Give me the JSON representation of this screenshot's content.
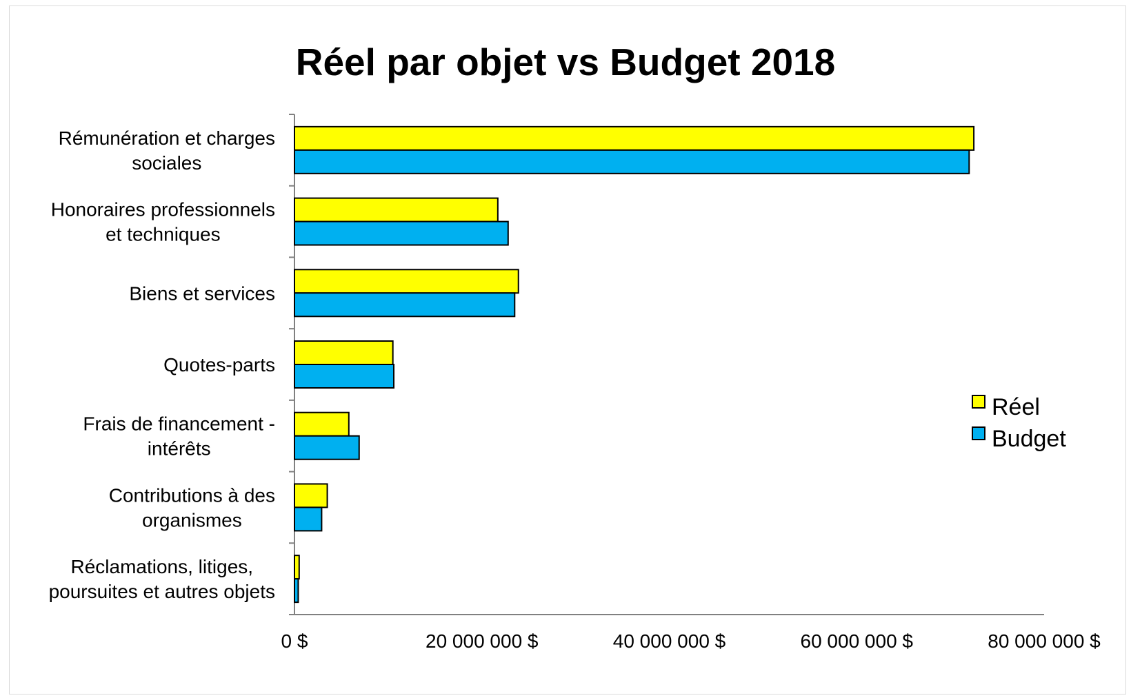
{
  "chart_data": {
    "type": "bar",
    "orientation": "horizontal",
    "title": "Réel par objet vs Budget 2018",
    "categories": [
      [
        "Rémunération et charges",
        "sociales"
      ],
      [
        "Honoraires professionnels",
        "et techniques"
      ],
      [
        "Biens et services"
      ],
      [
        "Quotes-parts"
      ],
      [
        "Frais de financement -",
        "intérêts"
      ],
      [
        "Contributions à des",
        "organismes"
      ],
      [
        "Réclamations, litiges,",
        "poursuites et autres objets"
      ]
    ],
    "series": [
      {
        "name": "Réel",
        "color": "#FFFF00",
        "values": [
          72500000,
          21700000,
          23900000,
          10500000,
          5800000,
          3500000,
          500000
        ]
      },
      {
        "name": "Budget",
        "color": "#00B0F0",
        "values": [
          72000000,
          22800000,
          23500000,
          10600000,
          6900000,
          2900000,
          400000
        ]
      }
    ],
    "xlim": [
      0,
      80000000
    ],
    "xticks": [
      0,
      20000000,
      40000000,
      60000000,
      80000000
    ],
    "xtick_labels": [
      "0 $",
      "20 000 000 $",
      "40 000 000 $",
      "60 000 000 $",
      "80 000 000 $"
    ],
    "legend_position": "right",
    "grid": false
  }
}
